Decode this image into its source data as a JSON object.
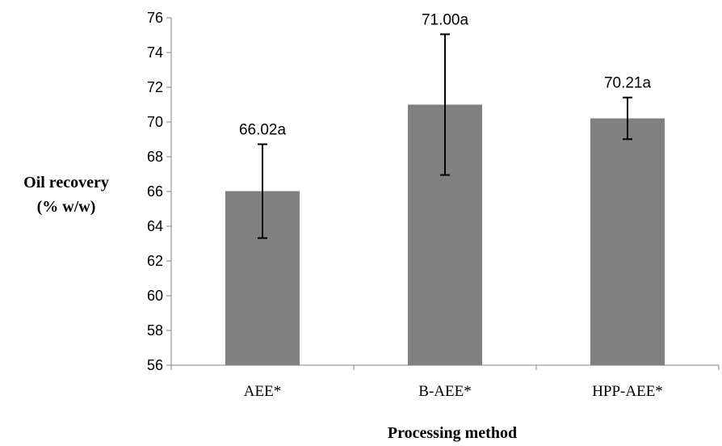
{
  "chart_data": {
    "type": "bar",
    "categories": [
      "AEE*",
      "B-AEE*",
      "HPP-AEE*"
    ],
    "values": [
      66.02,
      71.0,
      70.21
    ],
    "error": [
      2.7,
      4.05,
      1.2
    ],
    "data_labels": [
      "66.02a",
      "71.00a",
      "70.21a"
    ],
    "ylabel_lines": [
      "Oil recovery",
      "(% w/w)"
    ],
    "xlabel": "Processing method",
    "ylim": [
      56,
      76
    ],
    "yticks": [
      56,
      58,
      60,
      62,
      64,
      66,
      68,
      70,
      72,
      74,
      76
    ],
    "bar_color": "#808080",
    "grid": false,
    "legend": "none"
  }
}
